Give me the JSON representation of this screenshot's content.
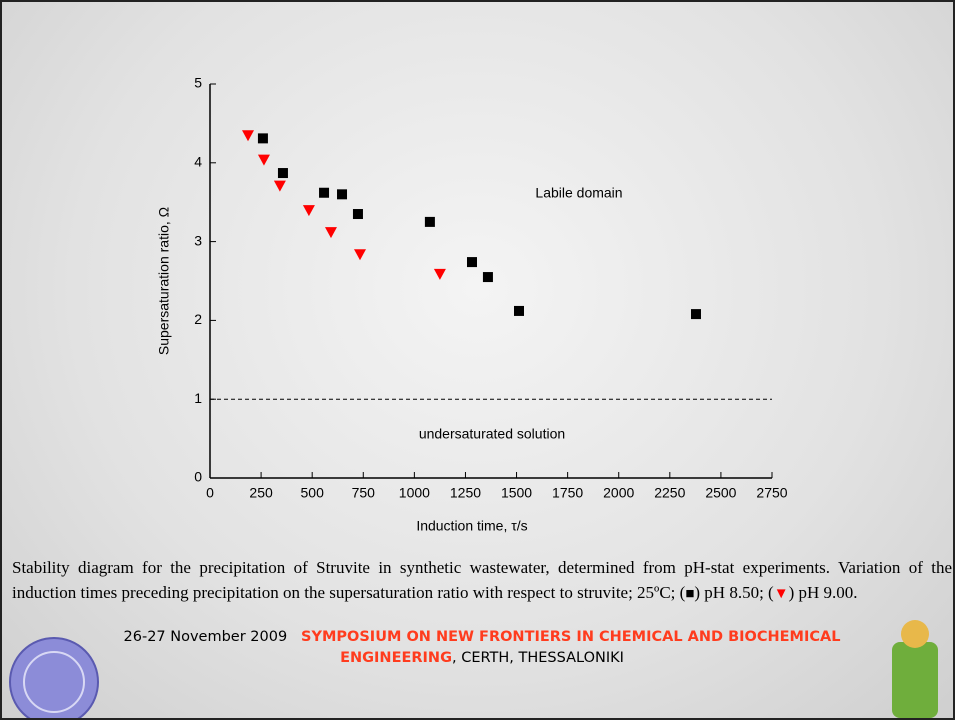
{
  "chart_data": {
    "type": "scatter",
    "ylabel": "Supersaturation ratio, Ω",
    "xlabel": "Induction time, τ/s",
    "xlim": [
      0,
      2750
    ],
    "xticks": [
      0,
      250,
      500,
      750,
      1000,
      1250,
      1500,
      1750,
      2000,
      2250,
      2500,
      2750
    ],
    "ylim": [
      0,
      5
    ],
    "yticks": [
      0,
      1,
      2,
      3,
      4,
      5
    ],
    "annotations": [
      "Labile domain",
      "undersaturated solution"
    ],
    "reference_line": 1,
    "series": [
      {
        "marker": "square",
        "color": "#000000",
        "x": [
          259,
          357,
          558,
          646,
          724,
          1076,
          1282,
          1360,
          1512,
          2378
        ],
        "values": [
          4.31,
          3.87,
          3.62,
          3.6,
          3.35,
          3.25,
          2.74,
          2.55,
          2.12,
          2.08
        ]
      },
      {
        "marker": "triangle",
        "color": "#ff0000",
        "x": [
          186,
          264,
          342,
          484,
          592,
          734,
          1125
        ],
        "values": [
          4.35,
          4.04,
          3.71,
          3.4,
          3.12,
          2.84,
          2.59
        ]
      }
    ]
  },
  "caption": [
    "Stability diagram for the precipitation of Struvite in synthetic wastewater, determined from pH-stat experiments.  Variation of the induction times preceding precipitation on the supersaturation ratio with respect to struvite; 25ºC; (",
    ") pH 8.50; (",
    ") pH 9.00."
  ],
  "footer": {
    "date": "26-27 November 2009",
    "event": "SYMPOSIUM ON NEW FRONTIERS IN CHEMICAL AND BIOCHEMICAL ENGINEERING",
    "place": ", CERTH, THESSALONIKI"
  }
}
